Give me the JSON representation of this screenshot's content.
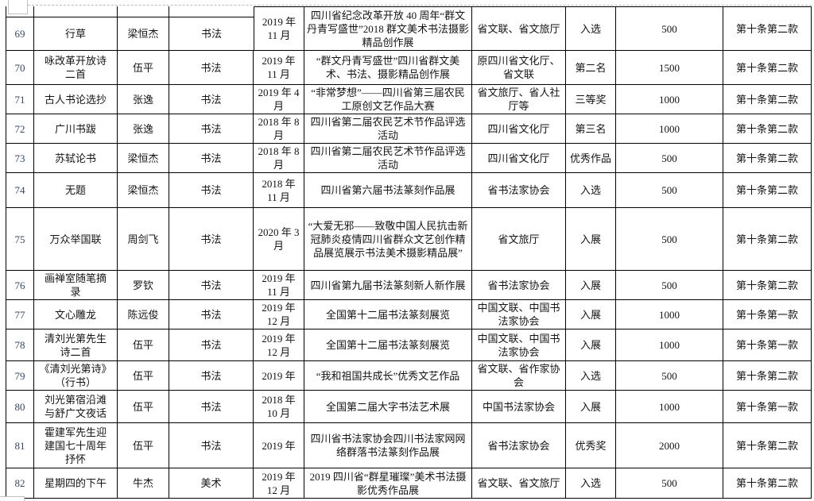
{
  "colors": {
    "table_border": "#000000",
    "row_number_color": "#33496b",
    "text_color": "#141414",
    "artifact_border": "#c3c3c3",
    "dashed_split_line": "#b9b9b9"
  },
  "table": {
    "rows": [
      {
        "no": "69",
        "title": "行草",
        "author": "梁恒杰",
        "category": "书法",
        "date": "2019 年\n11 月",
        "exhibition": "四川省纪念改革开放 40 周年“群文丹青写盛世”2018 群文美术书法摄影精品创作展",
        "organizer": "省文联、省文旅厅",
        "award": "入选",
        "amount": "500",
        "clause": "第十条第二款"
      },
      {
        "no": "70",
        "title": "咏改革开放诗\n二首",
        "author": "伍平",
        "category": "书法",
        "date": "2019 年\n11 月",
        "exhibition": "“群文丹青写盛世”四川省群文美术、书法、摄影精品创作展",
        "organizer": "原四川省文化厅、省文联",
        "award": "第二名",
        "amount": "1500",
        "clause": "第十条第二款"
      },
      {
        "no": "71",
        "title": "古人书论选抄",
        "author": "张逸",
        "category": "书法",
        "date": "2019 年 4\n月",
        "exhibition": "“非常梦想”——四川省第三届农民工原创文艺作品大赛",
        "organizer": "省文旅厅、省人社厅等",
        "award": "三等奖",
        "amount": "1000",
        "clause": "第十条第二款"
      },
      {
        "no": "72",
        "title": "广川书跋",
        "author": "张逸",
        "category": "书法",
        "date": "2018 年 8\n月",
        "exhibition": "四川省第二届农民艺术节作品评选活动",
        "organizer": "四川省文化厅",
        "award": "第三名",
        "amount": "1000",
        "clause": "第十条第二款"
      },
      {
        "no": "73",
        "title": "苏轼论书",
        "author": "梁恒杰",
        "category": "书法",
        "date": "2018 年 8\n月",
        "exhibition": "四川省第二届农民艺术节作品评选活动",
        "organizer": "四川省文化厅",
        "award": "优秀作品",
        "amount": "500",
        "clause": "第十条第二款"
      },
      {
        "no": "74",
        "title": "无题",
        "author": "梁恒杰",
        "category": "书法",
        "date": "2018 年\n11 月",
        "exhibition": "四川省第六届书法篆刻作品展",
        "organizer": "省书法家协会",
        "award": "入选",
        "amount": "500",
        "clause": "第十条第二款"
      },
      {
        "no": "75",
        "title": "万众举国联",
        "author": "周剑飞",
        "category": "书法",
        "date": "2020 年 3\n月",
        "exhibition": "“大爱无邪——致敬中国人民抗击新冠肺炎疫情四川省群众文艺创作精品展览展示书法美术摄影精品展”",
        "organizer": "省文旅厅",
        "award": "入展",
        "amount": "500",
        "clause": "第十条第二款"
      },
      {
        "no": "76",
        "title": "画禅室随笔摘\n录",
        "author": "罗钦",
        "category": "书法",
        "date": "2019 年\n11 月",
        "exhibition": "四川省第九届书法篆刻新人新作展",
        "organizer": "省书法家协会",
        "award": "入展",
        "amount": "500",
        "clause": "第十条第二款"
      },
      {
        "no": "77",
        "title": "文心雕龙",
        "author": "陈远俊",
        "category": "书法",
        "date": "2019 年\n12 月",
        "exhibition": "全国第十二届书法篆刻展览",
        "organizer": "中国文联、中国书法家协会",
        "award": "入展",
        "amount": "1000",
        "clause": "第十条第一款"
      },
      {
        "no": "78",
        "title": "清刘光第先生\n诗二首",
        "author": "伍平",
        "category": "书法",
        "date": "2019 年\n12 月",
        "exhibition": "全国第十二届书法篆刻展览",
        "organizer": "中国文联、中国书法家协会",
        "award": "入展",
        "amount": "1000",
        "clause": "第十条第一款"
      },
      {
        "no": "79",
        "title": "《清刘光第诗》\n（行书）",
        "author": "伍平",
        "category": "书法",
        "date": "2019 年",
        "exhibition": "“我和祖国共成长”优秀文艺作品",
        "organizer": "省文联、省作家协会",
        "award": "入选",
        "amount": "500",
        "clause": "第十条第二款"
      },
      {
        "no": "80",
        "title": "刘光第宿沿滩\n与舒广文夜话",
        "author": "伍平",
        "category": "书法",
        "date": "2018 年\n10 月",
        "exhibition": "全国第二届大字书法艺术展",
        "organizer": "中国书法家协会",
        "award": "入展",
        "amount": "1000",
        "clause": "第十条第一款"
      },
      {
        "no": "81",
        "title": "霍建军先生迎\n建国七十周年\n抒怀",
        "author": "伍平",
        "category": "书法",
        "date": "2019 年",
        "exhibition": "四川省书法家协会四川书法家网网络群落书法篆刻作品展",
        "organizer": "省书法家协会",
        "award": "优秀奖",
        "amount": "2000",
        "clause": "第十条第二款"
      },
      {
        "no": "82",
        "title": "星期四的下午",
        "author": "牛杰",
        "category": "美术",
        "date": "2019 年\n12 月",
        "exhibition": "2019 四川省“群星璀璨”美术书法摄影优秀作品展",
        "organizer": "省文联、省文旅厅",
        "award": "入选",
        "amount": "500",
        "clause": "第十条第二款"
      }
    ]
  }
}
